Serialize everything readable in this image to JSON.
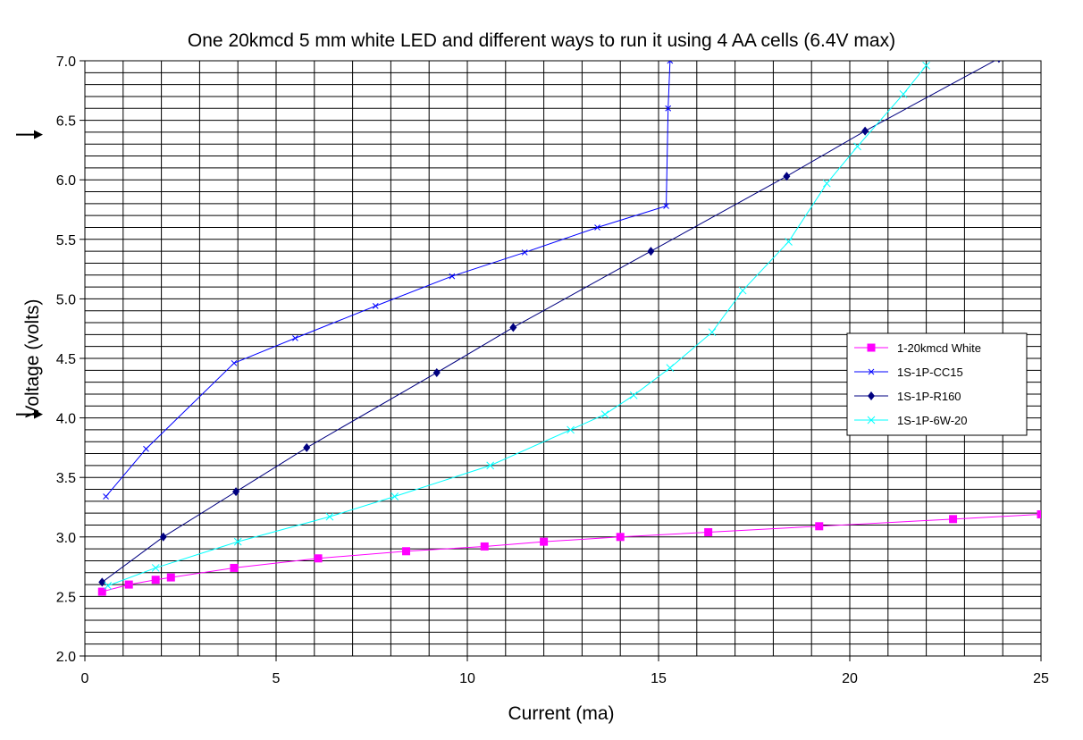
{
  "chart_data": {
    "type": "line",
    "title": "One 20kmcd 5 mm white LED and different ways to run it using 4 AA cells (6.4V max)",
    "xlabel": "Current (ma)",
    "ylabel": "Voltage (volts)",
    "xlim": [
      0,
      25
    ],
    "ylim": [
      2.0,
      7.0
    ],
    "x_ticks": [
      "0",
      "5",
      "10",
      "15",
      "20",
      "25"
    ],
    "y_ticks": [
      "2.0",
      "2.5",
      "3.0",
      "3.5",
      "4.0",
      "4.5",
      "5.0",
      "5.5",
      "6.0",
      "6.5",
      "7.0"
    ],
    "grid": true,
    "legend_position": "right",
    "annotation_arrows": [
      6.38,
      4.03
    ],
    "series": [
      {
        "name": "1-20kmcd White",
        "color": "#ff00ff",
        "marker": "square",
        "points": [
          [
            0.45,
            2.54
          ],
          [
            1.15,
            2.6
          ],
          [
            1.85,
            2.64
          ],
          [
            2.25,
            2.66
          ],
          [
            3.9,
            2.74
          ],
          [
            6.1,
            2.82
          ],
          [
            8.4,
            2.88
          ],
          [
            10.45,
            2.92
          ],
          [
            12.0,
            2.96
          ],
          [
            14.0,
            3.0
          ],
          [
            16.3,
            3.04
          ],
          [
            19.2,
            3.09
          ],
          [
            22.7,
            3.15
          ],
          [
            25.0,
            3.19
          ]
        ]
      },
      {
        "name": "1S-1P-CC15",
        "color": "#0000ff",
        "marker": "x-small",
        "points": [
          [
            0.55,
            3.34
          ],
          [
            1.6,
            3.74
          ],
          [
            3.9,
            4.46
          ],
          [
            5.5,
            4.67
          ],
          [
            7.6,
            4.94
          ],
          [
            9.6,
            5.19
          ],
          [
            11.5,
            5.39
          ],
          [
            13.4,
            5.6
          ],
          [
            15.2,
            5.78
          ],
          [
            15.25,
            6.6
          ],
          [
            15.3,
            7.0
          ]
        ]
      },
      {
        "name": "1S-1P-R160",
        "color": "#000080",
        "marker": "diamond",
        "points": [
          [
            0.45,
            2.62
          ],
          [
            2.05,
            3.0
          ],
          [
            3.95,
            3.38
          ],
          [
            5.8,
            3.75
          ],
          [
            9.2,
            4.38
          ],
          [
            11.2,
            4.76
          ],
          [
            14.8,
            5.4
          ],
          [
            18.35,
            6.03
          ],
          [
            20.4,
            6.41
          ],
          [
            23.9,
            7.02
          ]
        ]
      },
      {
        "name": "1S-1P-6W-20",
        "color": "#00ffff",
        "marker": "x",
        "points": [
          [
            0.6,
            2.59
          ],
          [
            1.85,
            2.74
          ],
          [
            4.0,
            2.96
          ],
          [
            6.4,
            3.17
          ],
          [
            8.1,
            3.34
          ],
          [
            10.6,
            3.6
          ],
          [
            12.7,
            3.9
          ],
          [
            13.6,
            4.03
          ],
          [
            14.35,
            4.19
          ],
          [
            15.3,
            4.42
          ],
          [
            16.4,
            4.72
          ],
          [
            17.2,
            5.07
          ],
          [
            18.4,
            5.48
          ],
          [
            19.4,
            5.97
          ],
          [
            20.2,
            6.28
          ],
          [
            21.4,
            6.72
          ],
          [
            22.0,
            6.96
          ]
        ]
      }
    ]
  }
}
